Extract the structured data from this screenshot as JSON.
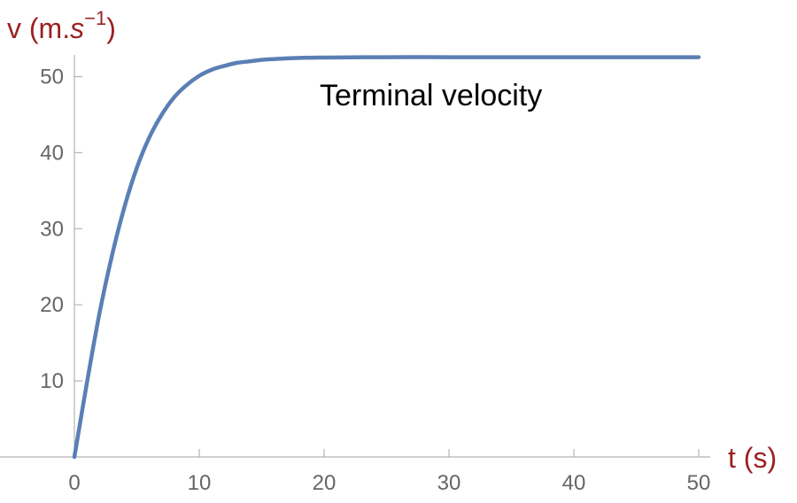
{
  "chart_data": {
    "type": "line",
    "title": "",
    "xlabel": "t (s)",
    "ylabel_base": "v (m.",
    "ylabel_unit": "s",
    "ylabel_exp": "−1",
    "ylabel_close": ")",
    "xlim": [
      0,
      50
    ],
    "ylim": [
      0,
      52.5
    ],
    "x_ticks": [
      0,
      10,
      20,
      30,
      40,
      50
    ],
    "y_ticks": [
      10,
      20,
      30,
      40,
      50
    ],
    "grid": false,
    "legend": "none",
    "annotation": "Terminal velocity",
    "series": [
      {
        "color": "#5b7fb5",
        "x": [
          0,
          1,
          2,
          3,
          4,
          5,
          6,
          7,
          8,
          9,
          10,
          11,
          12,
          13,
          14,
          15,
          16,
          18,
          20,
          25,
          30,
          35,
          40,
          45,
          50
        ],
        "y": [
          0,
          9.7,
          18.8,
          26.4,
          32.8,
          38.0,
          42.0,
          45.0,
          47.3,
          48.9,
          50.1,
          50.9,
          51.4,
          51.8,
          52.0,
          52.2,
          52.3,
          52.45,
          52.5,
          52.55,
          52.55,
          52.55,
          52.55,
          52.55,
          52.55
        ]
      }
    ]
  }
}
